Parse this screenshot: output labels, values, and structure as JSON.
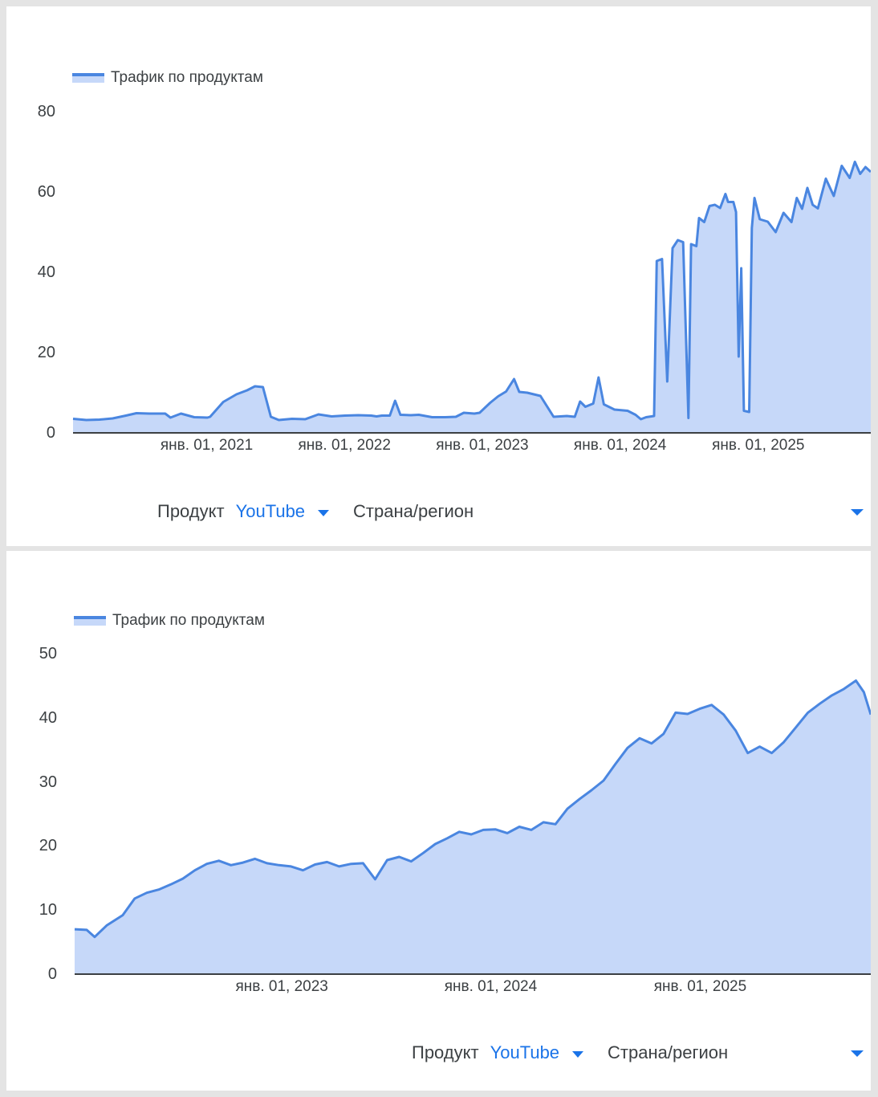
{
  "charts": [
    {
      "legend_label": "Трафик по продуктам",
      "filters": {
        "product_label": "Продукт",
        "product_value": "YouTube",
        "region_label": "Страна/регион"
      }
    },
    {
      "legend_label": "Трафик по продуктам",
      "filters": {
        "product_label": "Продукт",
        "product_value": "YouTube",
        "region_label": "Страна/регион"
      }
    }
  ],
  "chart_data": [
    {
      "type": "area",
      "series": [
        {
          "name": "Трафик по продуктам",
          "color": "#4a86e0",
          "fill": "#c6d8f9"
        }
      ],
      "ylim": [
        0,
        80
      ],
      "yticks": [
        0,
        20,
        40,
        60,
        80
      ],
      "xlim": [
        "2020-01-13",
        "2025-10-26"
      ],
      "xticks": [
        {
          "date": "2021-01-01",
          "label": "янв. 01, 2021"
        },
        {
          "date": "2022-01-01",
          "label": "янв. 01, 2022"
        },
        {
          "date": "2023-01-01",
          "label": "янв. 01, 2023"
        },
        {
          "date": "2024-01-01",
          "label": "янв. 01, 2024"
        },
        {
          "date": "2025-01-01",
          "label": "янв. 01, 2025"
        }
      ],
      "points": [
        [
          "2020-01-13",
          3.5
        ],
        [
          "2020-02-17",
          3.2
        ],
        [
          "2020-03-23",
          3.3
        ],
        [
          "2020-04-27",
          3.6
        ],
        [
          "2020-06-01",
          4.3
        ],
        [
          "2020-06-29",
          4.9
        ],
        [
          "2020-08-02",
          4.8
        ],
        [
          "2020-09-13",
          4.8
        ],
        [
          "2020-09-27",
          3.8
        ],
        [
          "2020-10-25",
          4.8
        ],
        [
          "2020-11-29",
          3.9
        ],
        [
          "2021-01-03",
          3.8
        ],
        [
          "2021-01-10",
          4.0
        ],
        [
          "2021-02-14",
          7.7
        ],
        [
          "2021-03-21",
          9.6
        ],
        [
          "2021-04-18",
          10.6
        ],
        [
          "2021-05-09",
          11.6
        ],
        [
          "2021-05-30",
          11.4
        ],
        [
          "2021-06-20",
          4.0
        ],
        [
          "2021-07-11",
          3.2
        ],
        [
          "2021-08-15",
          3.5
        ],
        [
          "2021-09-19",
          3.4
        ],
        [
          "2021-10-24",
          4.6
        ],
        [
          "2021-11-28",
          4.1
        ],
        [
          "2022-01-02",
          4.3
        ],
        [
          "2022-02-06",
          4.4
        ],
        [
          "2022-03-13",
          4.3
        ],
        [
          "2022-03-27",
          4.1
        ],
        [
          "2022-04-10",
          4.3
        ],
        [
          "2022-05-01",
          4.3
        ],
        [
          "2022-05-15",
          8.0
        ],
        [
          "2022-05-29",
          4.5
        ],
        [
          "2022-06-26",
          4.4
        ],
        [
          "2022-07-17",
          4.5
        ],
        [
          "2022-08-21",
          3.9
        ],
        [
          "2022-09-25",
          3.9
        ],
        [
          "2022-10-23",
          4.0
        ],
        [
          "2022-11-13",
          5.0
        ],
        [
          "2022-12-11",
          4.8
        ],
        [
          "2022-12-25",
          5.0
        ],
        [
          "2023-01-22",
          7.5
        ],
        [
          "2023-02-12",
          9.1
        ],
        [
          "2023-03-05",
          10.3
        ],
        [
          "2023-03-26",
          13.4
        ],
        [
          "2023-04-09",
          10.2
        ],
        [
          "2023-04-30",
          10.0
        ],
        [
          "2023-06-04",
          9.2
        ],
        [
          "2023-07-09",
          4.0
        ],
        [
          "2023-08-13",
          4.2
        ],
        [
          "2023-09-03",
          4.0
        ],
        [
          "2023-09-17",
          7.8
        ],
        [
          "2023-10-01",
          6.5
        ],
        [
          "2023-10-22",
          7.3
        ],
        [
          "2023-11-05",
          13.8
        ],
        [
          "2023-11-19",
          7.1
        ],
        [
          "2023-12-17",
          5.8
        ],
        [
          "2024-01-21",
          5.5
        ],
        [
          "2024-02-11",
          4.5
        ],
        [
          "2024-02-25",
          3.4
        ],
        [
          "2024-03-10",
          3.9
        ],
        [
          "2024-03-31",
          4.2
        ],
        [
          "2024-04-07",
          42.8
        ],
        [
          "2024-04-21",
          43.3
        ],
        [
          "2024-05-05",
          12.8
        ],
        [
          "2024-05-19",
          46.0
        ],
        [
          "2024-06-02",
          48.0
        ],
        [
          "2024-06-16",
          47.5
        ],
        [
          "2024-06-30",
          3.7
        ],
        [
          "2024-07-07",
          47.0
        ],
        [
          "2024-07-21",
          46.5
        ],
        [
          "2024-07-28",
          53.5
        ],
        [
          "2024-08-11",
          52.5
        ],
        [
          "2024-08-25",
          56.5
        ],
        [
          "2024-09-08",
          56.8
        ],
        [
          "2024-09-22",
          56.0
        ],
        [
          "2024-10-06",
          59.5
        ],
        [
          "2024-10-13",
          57.5
        ],
        [
          "2024-10-27",
          57.5
        ],
        [
          "2024-11-03",
          55.0
        ],
        [
          "2024-11-10",
          19.0
        ],
        [
          "2024-11-17",
          41.0
        ],
        [
          "2024-11-24",
          5.5
        ],
        [
          "2024-12-08",
          5.2
        ],
        [
          "2024-12-15",
          51.0
        ],
        [
          "2024-12-22",
          58.5
        ],
        [
          "2025-01-05",
          53.2
        ],
        [
          "2025-01-26",
          52.6
        ],
        [
          "2025-02-16",
          50.0
        ],
        [
          "2025-03-09",
          54.8
        ],
        [
          "2025-03-30",
          52.5
        ],
        [
          "2025-04-13",
          58.5
        ],
        [
          "2025-04-27",
          55.8
        ],
        [
          "2025-05-11",
          61.0
        ],
        [
          "2025-05-25",
          56.8
        ],
        [
          "2025-06-08",
          55.9
        ],
        [
          "2025-06-29",
          63.3
        ],
        [
          "2025-07-20",
          59.0
        ],
        [
          "2025-08-10",
          66.5
        ],
        [
          "2025-08-31",
          63.5
        ],
        [
          "2025-09-14",
          67.5
        ],
        [
          "2025-09-28",
          64.5
        ],
        [
          "2025-10-12",
          66.2
        ],
        [
          "2025-10-26",
          65.0
        ]
      ]
    },
    {
      "type": "area",
      "series": [
        {
          "name": "Трафик по продуктам",
          "color": "#4a86e0",
          "fill": "#c6d8f9"
        }
      ],
      "ylim": [
        0,
        50
      ],
      "yticks": [
        0,
        10,
        20,
        30,
        40,
        50
      ],
      "xlim": [
        "2022-01-04",
        "2025-10-26"
      ],
      "xticks": [
        {
          "date": "2023-01-01",
          "label": "янв. 01, 2023"
        },
        {
          "date": "2024-01-01",
          "label": "янв. 01, 2024"
        },
        {
          "date": "2025-01-01",
          "label": "янв. 01, 2025"
        }
      ],
      "points": [
        [
          "2022-01-04",
          7.0
        ],
        [
          "2022-01-25",
          6.9
        ],
        [
          "2022-02-08",
          5.8
        ],
        [
          "2022-03-01",
          7.6
        ],
        [
          "2022-03-29",
          9.2
        ],
        [
          "2022-04-19",
          11.8
        ],
        [
          "2022-05-10",
          12.7
        ],
        [
          "2022-05-31",
          13.2
        ],
        [
          "2022-06-21",
          14.0
        ],
        [
          "2022-07-12",
          14.9
        ],
        [
          "2022-08-02",
          16.2
        ],
        [
          "2022-08-23",
          17.2
        ],
        [
          "2022-09-13",
          17.7
        ],
        [
          "2022-10-04",
          17.0
        ],
        [
          "2022-10-25",
          17.4
        ],
        [
          "2022-11-15",
          18.0
        ],
        [
          "2022-12-06",
          17.3
        ],
        [
          "2022-12-27",
          17.0
        ],
        [
          "2023-01-17",
          16.8
        ],
        [
          "2023-02-07",
          16.2
        ],
        [
          "2023-02-28",
          17.1
        ],
        [
          "2023-03-21",
          17.5
        ],
        [
          "2023-04-11",
          16.8
        ],
        [
          "2023-05-02",
          17.2
        ],
        [
          "2023-05-23",
          17.3
        ],
        [
          "2023-06-13",
          14.8
        ],
        [
          "2023-07-04",
          17.8
        ],
        [
          "2023-07-25",
          18.3
        ],
        [
          "2023-08-15",
          17.6
        ],
        [
          "2023-09-05",
          18.9
        ],
        [
          "2023-09-26",
          20.3
        ],
        [
          "2023-10-17",
          21.2
        ],
        [
          "2023-11-07",
          22.2
        ],
        [
          "2023-11-28",
          21.8
        ],
        [
          "2023-12-19",
          22.5
        ],
        [
          "2024-01-09",
          22.6
        ],
        [
          "2024-01-30",
          22.0
        ],
        [
          "2024-02-20",
          23.0
        ],
        [
          "2024-03-12",
          22.5
        ],
        [
          "2024-04-02",
          23.7
        ],
        [
          "2024-04-23",
          23.4
        ],
        [
          "2024-05-14",
          25.8
        ],
        [
          "2024-06-04",
          27.3
        ],
        [
          "2024-06-25",
          28.7
        ],
        [
          "2024-07-16",
          30.2
        ],
        [
          "2024-08-06",
          32.8
        ],
        [
          "2024-08-27",
          35.3
        ],
        [
          "2024-09-17",
          36.8
        ],
        [
          "2024-10-08",
          36.0
        ],
        [
          "2024-10-29",
          37.5
        ],
        [
          "2024-11-19",
          40.8
        ],
        [
          "2024-12-10",
          40.6
        ],
        [
          "2024-12-31",
          41.4
        ],
        [
          "2025-01-21",
          42.0
        ],
        [
          "2025-02-11",
          40.5
        ],
        [
          "2025-03-04",
          38.0
        ],
        [
          "2025-03-25",
          34.5
        ],
        [
          "2025-04-15",
          35.5
        ],
        [
          "2025-05-06",
          34.5
        ],
        [
          "2025-05-27",
          36.2
        ],
        [
          "2025-06-17",
          38.5
        ],
        [
          "2025-07-08",
          40.8
        ],
        [
          "2025-07-29",
          42.2
        ],
        [
          "2025-08-19",
          43.5
        ],
        [
          "2025-09-09",
          44.5
        ],
        [
          "2025-09-30",
          45.8
        ],
        [
          "2025-10-14",
          44.0
        ],
        [
          "2025-10-26",
          40.5
        ]
      ]
    }
  ]
}
